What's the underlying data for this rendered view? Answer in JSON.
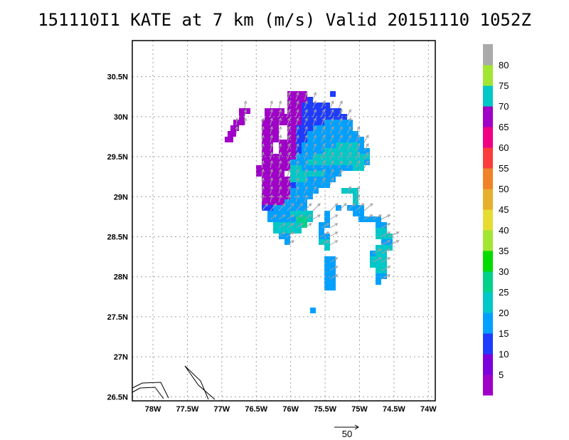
{
  "title": "151110I1 KATE at 7 km (m/s) Valid 20151110 1052Z",
  "lat_labels": [
    "30.5N",
    "30N",
    "29.5N",
    "29N",
    "28.5N",
    "28N",
    "27.5N",
    "27N",
    "26.5N"
  ],
  "lon_labels": [
    "78W",
    "77.5W",
    "77W",
    "76.5W",
    "76W",
    "75.5W",
    "75W",
    "74.5W",
    "74W"
  ],
  "colorbar": {
    "labels": [
      "5",
      "10",
      "15",
      "20",
      "25",
      "30",
      "35",
      "40",
      "45",
      "50",
      "55",
      "60",
      "65",
      "70",
      "75",
      "80"
    ],
    "colors": [
      "#a000c8",
      "#7d00dc",
      "#1e3cff",
      "#00a0ff",
      "#00c8c8",
      "#00d28c",
      "#00dc00",
      "#a0e632",
      "#e6dc32",
      "#e6af2d",
      "#f08228",
      "#fa3c3c",
      "#f00082",
      "#a000c8",
      "#00c8c8",
      "#a0e632",
      "#aaaaaa"
    ]
  },
  "vector_scale": {
    "label": "50"
  },
  "map": {
    "lon_range": [
      -78.3,
      -73.9
    ],
    "lat_range": [
      26.45,
      30.95
    ],
    "palette": {
      "P": "#a000c8",
      "B": "#1e3cff",
      "S": "#00a0ff",
      "C": "#00c8c8",
      "G": "#00d28c"
    }
  }
}
